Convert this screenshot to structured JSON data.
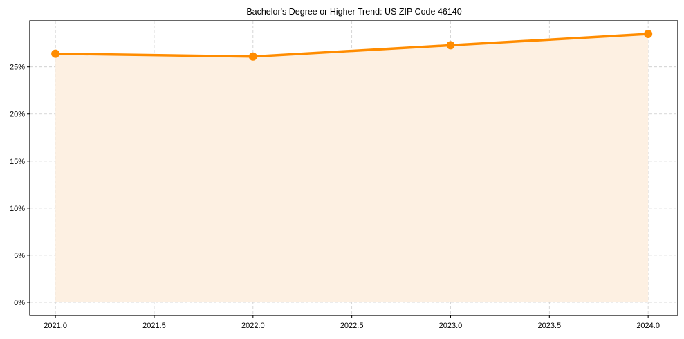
{
  "chart_data": {
    "type": "line",
    "title": "Bachelor's Degree or Higher Trend: US ZIP Code 46140",
    "xlabel": "",
    "ylabel": "",
    "x": [
      2021,
      2022,
      2023,
      2024
    ],
    "series": [
      {
        "name": "Bachelor's Degree or Higher",
        "values": [
          26.4,
          26.1,
          27.3,
          28.5
        ],
        "unit": "%",
        "color": "#ff8c00",
        "fill": true,
        "fill_color": "#fdf0e2",
        "markers": true
      }
    ],
    "xlim": [
      2020.87,
      2024.15
    ],
    "ylim": [
      -1.4,
      29.9
    ],
    "xticks": [
      "2021.0",
      "2021.5",
      "2022.0",
      "2022.5",
      "2023.0",
      "2023.5",
      "2024.0"
    ],
    "yticks": [
      "0%",
      "5%",
      "10%",
      "15%",
      "20%",
      "25%"
    ],
    "grid": true,
    "legend": null
  }
}
